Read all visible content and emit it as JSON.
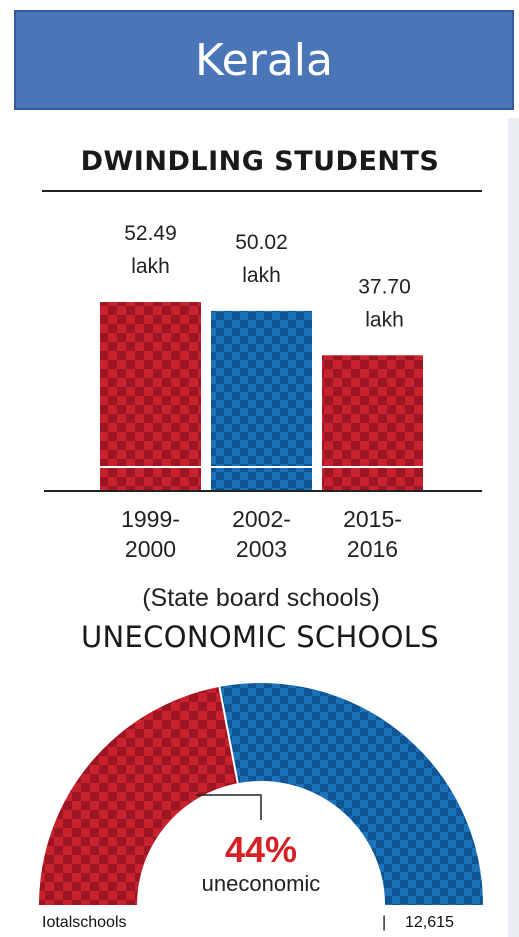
{
  "banner_title": "Kerala",
  "colors": {
    "banner": "#4a76b8",
    "red": "#c7222d",
    "red_dark": "#9e1623",
    "blue": "#1b72b9",
    "blue_dark": "#0f5594",
    "accent_text": "#d42027"
  },
  "chart_data": [
    {
      "type": "bar",
      "title": "DWINDLING STUDENTS",
      "subtitle": "(State board schools)",
      "categories": [
        [
          "1999-",
          "2000"
        ],
        [
          "2002-",
          "2003"
        ],
        [
          "2015-",
          "2016"
        ]
      ],
      "values": [
        52.49,
        50.02,
        37.7
      ],
      "data_labels": [
        [
          "52.49",
          "lakh"
        ],
        [
          "50.02",
          "lakh"
        ],
        [
          "37.70",
          "lakh"
        ]
      ],
      "bar_colors": [
        "red",
        "blue",
        "red"
      ],
      "unit": "lakh"
    },
    {
      "type": "pie",
      "style": "semicircle-donut",
      "title": "UNECONOMIC SCHOOLS",
      "slices": [
        {
          "label": "uneconomic",
          "percent": 44,
          "color": "red"
        },
        {
          "label": "",
          "percent": 56,
          "color": "blue"
        }
      ],
      "callout_value": "44%",
      "callout_label": "uneconomic",
      "footer_label": "Iotalschools",
      "footer_separator": "|",
      "footer_value": "12,615"
    }
  ]
}
